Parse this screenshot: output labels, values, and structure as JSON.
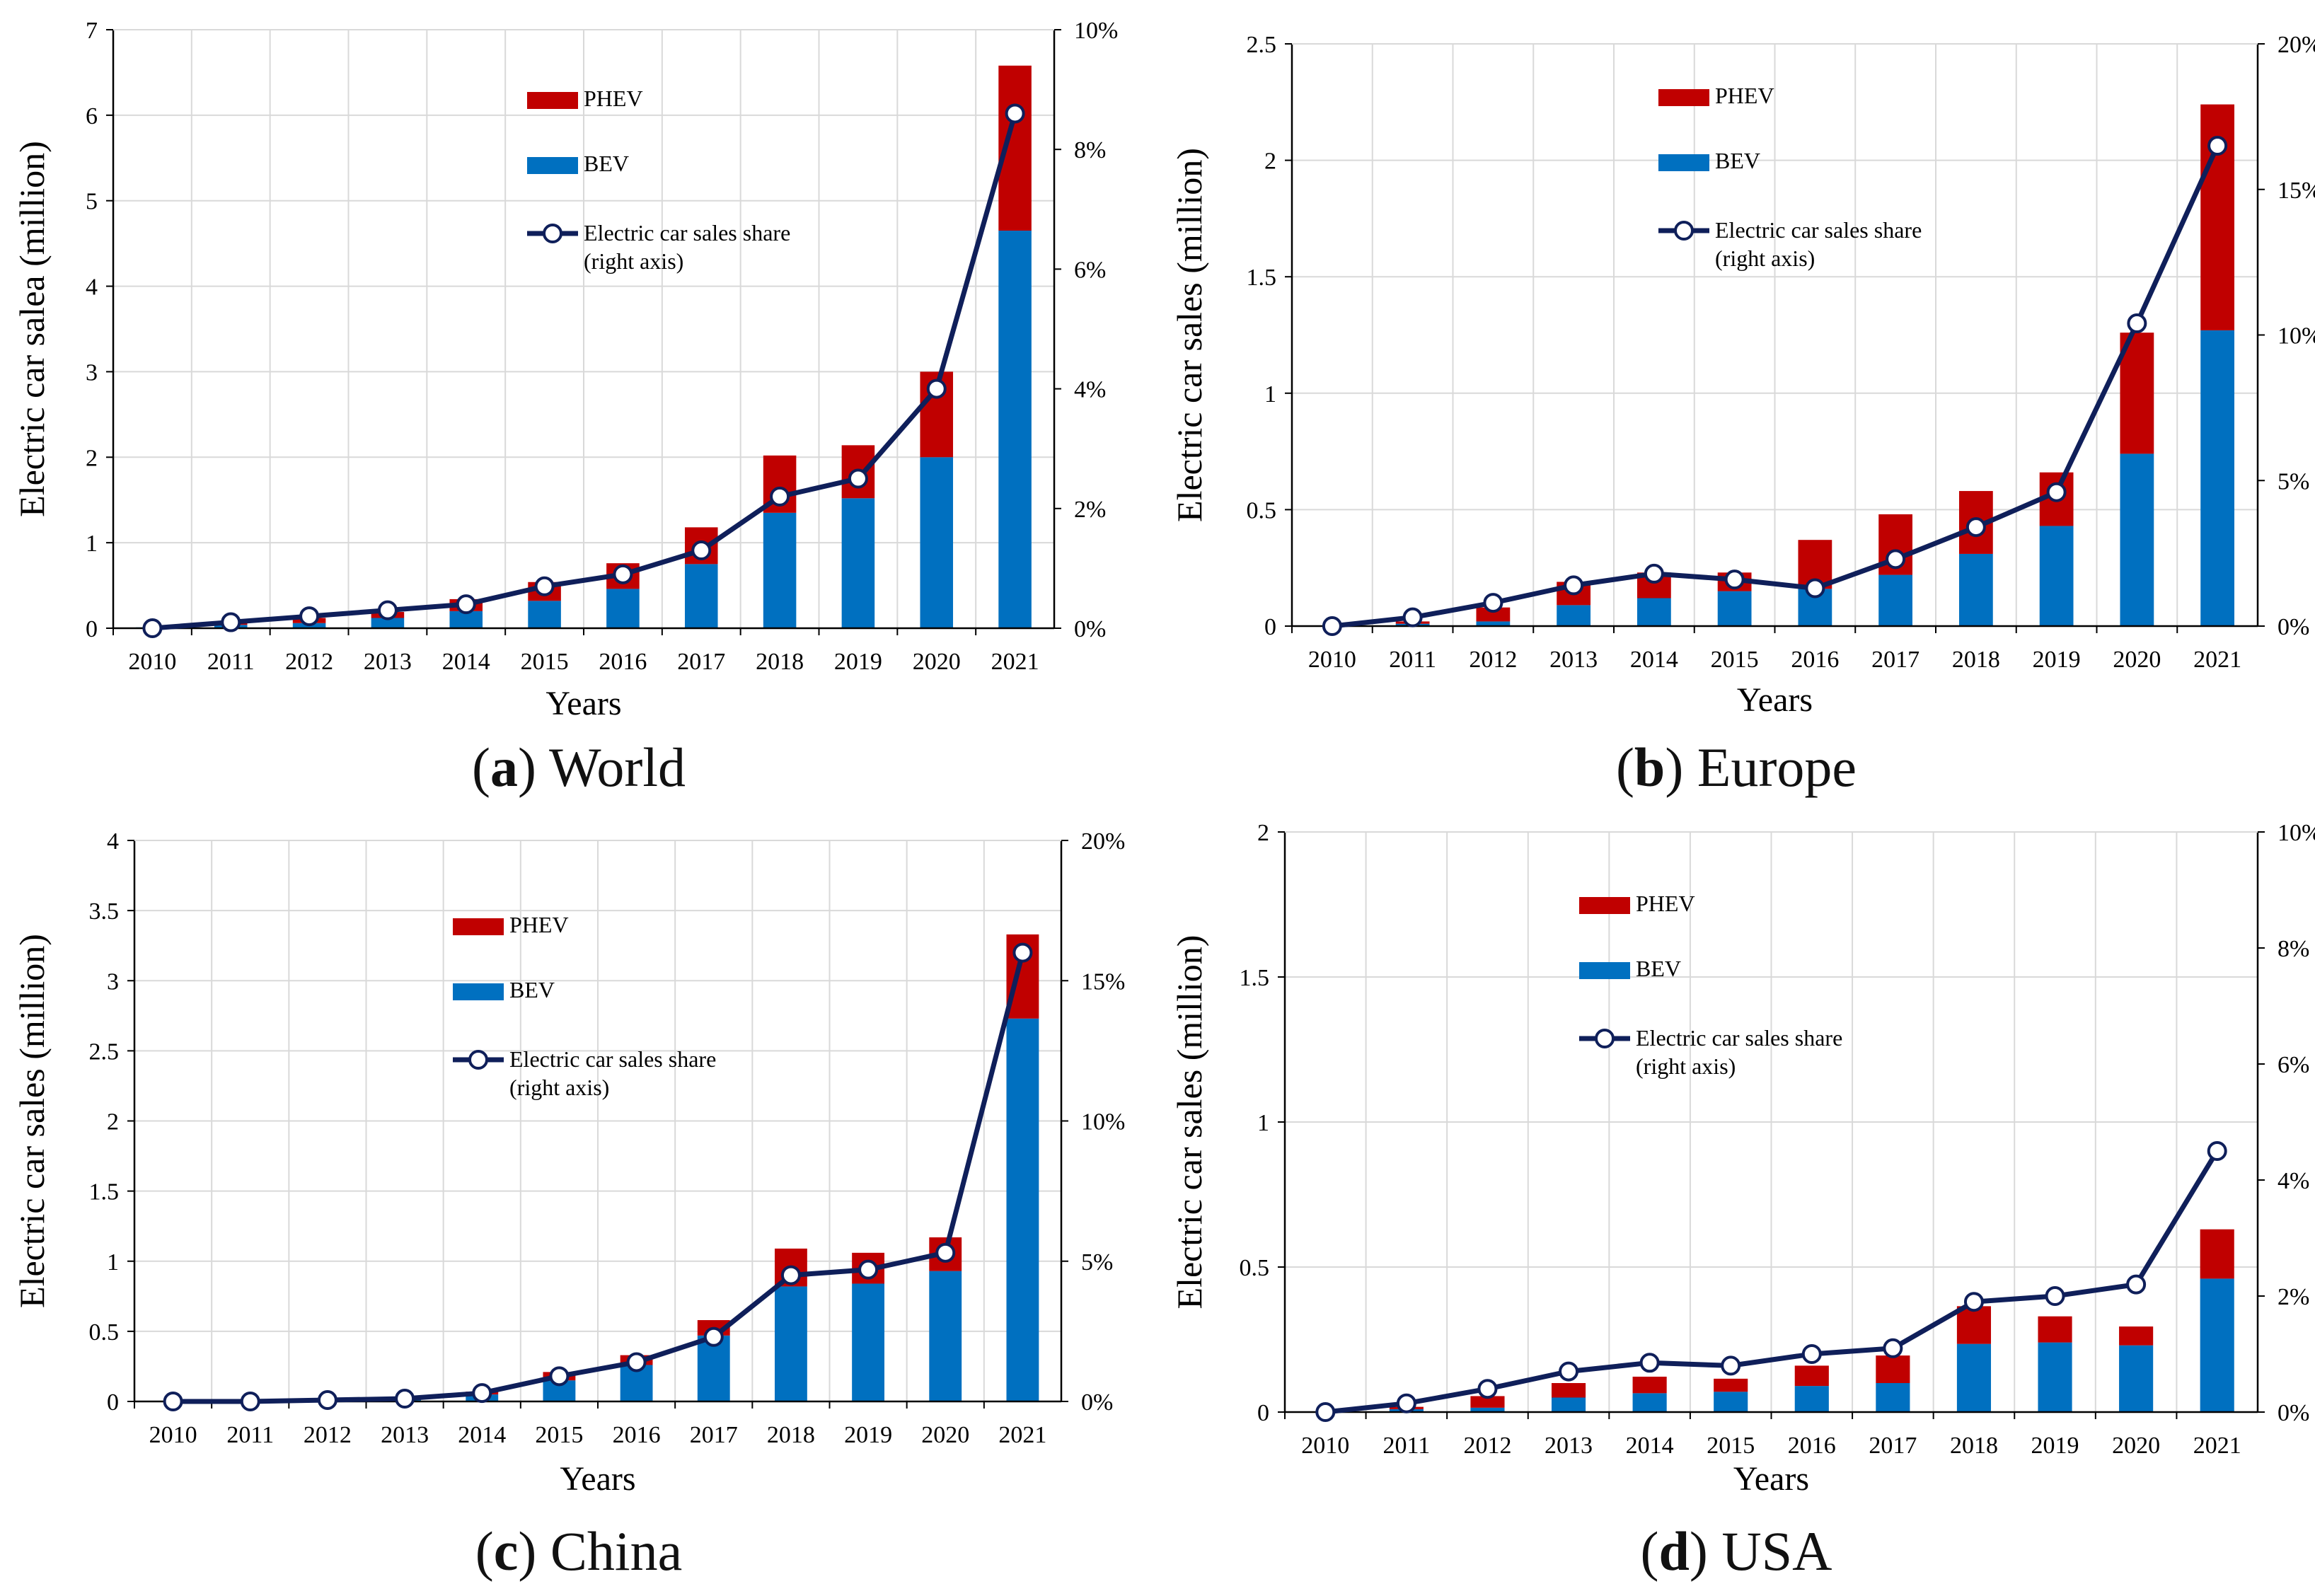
{
  "colors": {
    "phev": "#c00000",
    "bev": "#0070c0",
    "line": "#0f1f5a",
    "grid": "#d9d9d9",
    "axis": "#000000"
  },
  "chart_data": [
    {
      "type": "bar",
      "stacked": true,
      "caption_letter": "a",
      "caption_text": "World",
      "categories": [
        "2010",
        "2011",
        "2012",
        "2013",
        "2014",
        "2015",
        "2016",
        "2017",
        "2018",
        "2019",
        "2020",
        "2021"
      ],
      "xlabel": "Years",
      "ylabel": "Electric car salea (million)",
      "ylim": [
        0,
        7
      ],
      "yticks": [
        "0",
        "1",
        "2",
        "3",
        "4",
        "5",
        "6",
        "7"
      ],
      "y2lim": [
        0,
        10
      ],
      "y2ticks": [
        "0%",
        "2%",
        "4%",
        "6%",
        "8%",
        "10%"
      ],
      "series": [
        {
          "name": "BEV",
          "kind": "bar",
          "values": [
            0.01,
            0.04,
            0.06,
            0.12,
            0.2,
            0.32,
            0.46,
            0.75,
            1.35,
            1.52,
            2.0,
            4.65
          ]
        },
        {
          "name": "PHEV",
          "kind": "bar",
          "values": [
            0.0,
            0.02,
            0.06,
            0.07,
            0.14,
            0.22,
            0.3,
            0.43,
            0.67,
            0.62,
            1.0,
            1.93
          ]
        },
        {
          "name": "Electric car sales share",
          "name_line2": "(right axis)",
          "kind": "line",
          "axis": "right",
          "values": [
            0.0,
            0.1,
            0.2,
            0.3,
            0.4,
            0.7,
            0.9,
            1.3,
            2.2,
            2.5,
            4.0,
            8.6
          ]
        }
      ],
      "legend": "top-center"
    },
    {
      "type": "bar",
      "stacked": true,
      "caption_letter": "b",
      "caption_text": "Europe",
      "categories": [
        "2010",
        "2011",
        "2012",
        "2013",
        "2014",
        "2015",
        "2016",
        "2017",
        "2018",
        "2019",
        "2020",
        "2021"
      ],
      "xlabel": "Years",
      "ylabel": "Electric car sales (million)",
      "ylim": [
        0,
        2.5
      ],
      "yticks": [
        "0",
        "0.5",
        "1",
        "1.5",
        "2",
        "2.5"
      ],
      "y2lim": [
        0,
        20
      ],
      "y2ticks": [
        "0%",
        "5%",
        "10%",
        "15%",
        "20%"
      ],
      "series": [
        {
          "name": "BEV",
          "kind": "bar",
          "values": [
            0.0,
            0.01,
            0.02,
            0.09,
            0.12,
            0.15,
            0.16,
            0.22,
            0.31,
            0.43,
            0.74,
            1.27
          ]
        },
        {
          "name": "PHEV",
          "kind": "bar",
          "values": [
            0.0,
            0.01,
            0.06,
            0.1,
            0.11,
            0.08,
            0.21,
            0.26,
            0.27,
            0.23,
            0.52,
            0.97
          ]
        },
        {
          "name": "Electric car sales share",
          "name_line2": "(right axis)",
          "kind": "line",
          "axis": "right",
          "values": [
            0.0,
            0.3,
            0.8,
            1.4,
            1.8,
            1.6,
            1.3,
            2.3,
            3.4,
            4.6,
            10.4,
            16.5
          ]
        }
      ],
      "legend": "top-center"
    },
    {
      "type": "bar",
      "stacked": true,
      "caption_letter": "c",
      "caption_text": "China",
      "categories": [
        "2010",
        "2011",
        "2012",
        "2013",
        "2014",
        "2015",
        "2016",
        "2017",
        "2018",
        "2019",
        "2020",
        "2021"
      ],
      "xlabel": "Years",
      "ylabel": "Electric car sales (million)",
      "ylim": [
        0,
        4
      ],
      "yticks": [
        "0",
        "0.5",
        "1",
        "1.5",
        "2",
        "2.5",
        "3",
        "3.5",
        "4"
      ],
      "y2lim": [
        0,
        20
      ],
      "y2ticks": [
        "0%",
        "5%",
        "10%",
        "15%",
        "20%"
      ],
      "series": [
        {
          "name": "BEV",
          "kind": "bar",
          "values": [
            0.0,
            0.0,
            0.01,
            0.01,
            0.05,
            0.15,
            0.26,
            0.47,
            0.82,
            0.84,
            0.93,
            2.73
          ]
        },
        {
          "name": "PHEV",
          "kind": "bar",
          "values": [
            0.0,
            0.0,
            0.0,
            0.01,
            0.02,
            0.06,
            0.07,
            0.11,
            0.27,
            0.22,
            0.24,
            0.6
          ]
        },
        {
          "name": "Electric car sales share",
          "name_line2": "(right axis)",
          "kind": "line",
          "axis": "right",
          "values": [
            0.0,
            0.0,
            0.05,
            0.1,
            0.3,
            0.9,
            1.4,
            2.3,
            4.5,
            4.7,
            5.3,
            16.0
          ]
        }
      ],
      "legend": "top-center"
    },
    {
      "type": "bar",
      "stacked": true,
      "caption_letter": "d",
      "caption_text": "USA",
      "categories": [
        "2010",
        "2011",
        "2012",
        "2013",
        "2014",
        "2015",
        "2016",
        "2017",
        "2018",
        "2019",
        "2020",
        "2021"
      ],
      "xlabel": "Years",
      "ylabel": "Electric car sales (million)",
      "ylim": [
        0,
        2
      ],
      "yticks": [
        "0",
        "0.5",
        "1",
        "1.5",
        "2"
      ],
      "y2lim": [
        0,
        10
      ],
      "y2ticks": [
        "0%",
        "2%",
        "4%",
        "6%",
        "8%",
        "10%"
      ],
      "series": [
        {
          "name": "BEV",
          "kind": "bar",
          "values": [
            0.0,
            0.01,
            0.015,
            0.05,
            0.065,
            0.07,
            0.09,
            0.1,
            0.235,
            0.24,
            0.23,
            0.46
          ]
        },
        {
          "name": "PHEV",
          "kind": "bar",
          "values": [
            0.0,
            0.008,
            0.04,
            0.05,
            0.057,
            0.045,
            0.07,
            0.095,
            0.13,
            0.09,
            0.065,
            0.17
          ]
        },
        {
          "name": "Electric car sales share",
          "name_line2": "(right axis)",
          "kind": "line",
          "axis": "right",
          "values": [
            0.0,
            0.15,
            0.4,
            0.7,
            0.85,
            0.8,
            1.0,
            1.1,
            1.9,
            2.0,
            2.2,
            4.5
          ]
        }
      ],
      "legend": "top-center"
    }
  ]
}
